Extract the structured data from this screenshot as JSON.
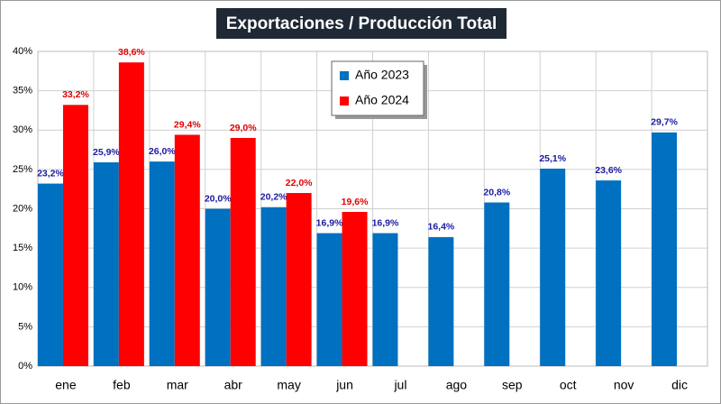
{
  "chart_data": {
    "type": "bar",
    "title": "Exportaciones / Producción Total",
    "categories": [
      "ene",
      "feb",
      "mar",
      "abr",
      "may",
      "jun",
      "jul",
      "ago",
      "sep",
      "oct",
      "nov",
      "dic"
    ],
    "series": [
      {
        "name": "Año 2023",
        "color": "#0070c0",
        "label_color": "#1a1aa0",
        "values": [
          23.2,
          25.9,
          26.0,
          20.0,
          20.2,
          16.9,
          16.9,
          16.4,
          20.8,
          25.1,
          23.6,
          29.7
        ],
        "value_labels": [
          "23,2%",
          "25,9%",
          "26,0%",
          "20,0%",
          "20,2%",
          "16,9%",
          "16,9%",
          "16,4%",
          "20,8%",
          "25,1%",
          "23,6%",
          "29,7%"
        ]
      },
      {
        "name": "Año 2024",
        "color": "#ff0000",
        "label_color": "#e00000",
        "values": [
          33.2,
          38.6,
          29.4,
          29.0,
          22.0,
          19.6,
          null,
          null,
          null,
          null,
          null,
          null
        ],
        "value_labels": [
          "33,2%",
          "38,6%",
          "29,4%",
          "29,0%",
          "22,0%",
          "19,6%",
          null,
          null,
          null,
          null,
          null,
          null
        ]
      }
    ],
    "ylim": [
      0,
      40
    ],
    "yticks": [
      {
        "value": 0,
        "label": "0%"
      },
      {
        "value": 5,
        "label": "5%"
      },
      {
        "value": 10,
        "label": "10%"
      },
      {
        "value": 15,
        "label": "15%"
      },
      {
        "value": 20,
        "label": "20%"
      },
      {
        "value": 25,
        "label": "25%"
      },
      {
        "value": 30,
        "label": "30%"
      },
      {
        "value": 35,
        "label": "35%"
      },
      {
        "value": 40,
        "label": "40%"
      }
    ],
    "grid": true,
    "legend": "top-center"
  }
}
